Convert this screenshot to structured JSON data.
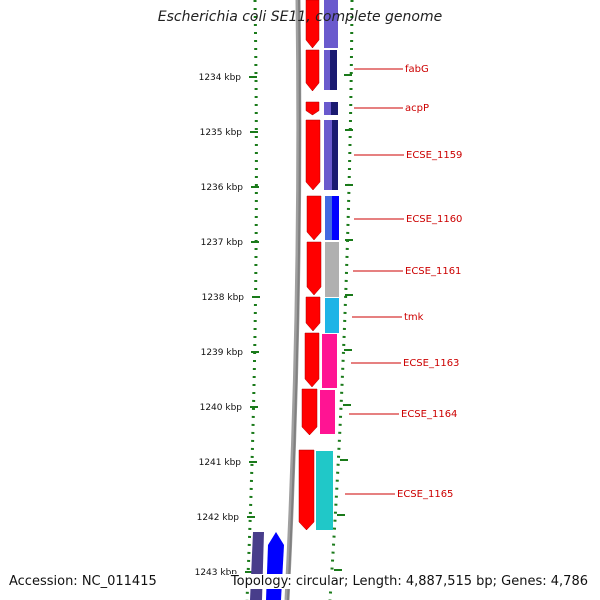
{
  "title": "Escherichia coli SE11, complete genome",
  "accession": "Accession: NC_011415",
  "topology": "Topology: circular; Length: 4,887,515 bp; Genes: 4,786",
  "colors": {
    "background": "#ffffff",
    "ruler": "#1a7a1a",
    "backbone": "#808080",
    "forward_cds": "#ff0000",
    "label": "#cc0000"
  },
  "ruler_ticks": [
    "1234 kbp",
    "1235 kbp",
    "1236 kbp",
    "1237 kbp",
    "1238 kbp",
    "1239 kbp",
    "1240 kbp",
    "1241 kbp",
    "1242 kbp",
    "1243 kbp"
  ],
  "gene_labels": [
    "fabG",
    "acpP",
    "ECSE_1159",
    "ECSE_1160",
    "ECSE_1161",
    "tmk",
    "ECSE_1163",
    "ECSE_1164",
    "ECSE_1165"
  ]
}
